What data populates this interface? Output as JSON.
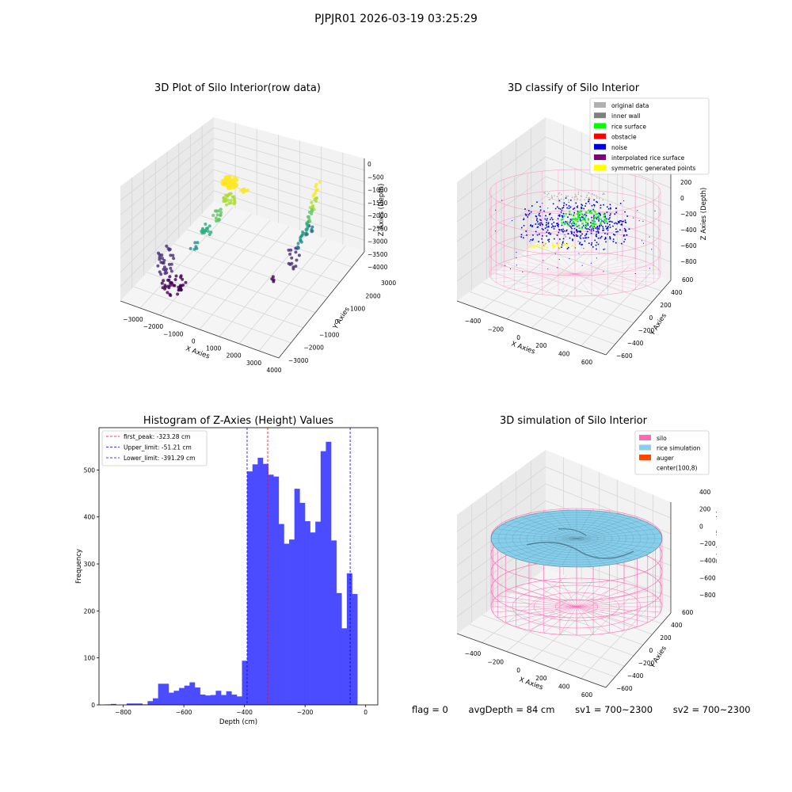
{
  "page_title": "PJPJR01 2026-03-19 03:25:29",
  "status": {
    "flag": "flag = 0",
    "avg_depth": "avgDepth = 84 cm",
    "sv1": "sv1 = 700~2300",
    "sv2": "sv2 = 700~2300"
  },
  "colors": {
    "histogram_bar": "#4b4bff",
    "first_peak_line": "#ff0000",
    "limit_line": "#0000ff",
    "silo": "#ff69b4",
    "rice_simulation": "#87ceeb",
    "auger": "#ff4500",
    "original_data": "#b0b0b0",
    "inner_wall": "#808080",
    "rice_surface": "#00ff00",
    "obstacle": "#ff0000",
    "noise": "#0000dd",
    "interpolated_rice_surface": "#800080",
    "symmetric_generated_points": "#ffff00"
  },
  "chart_data": [
    {
      "type": "scatter",
      "title": "3D Plot of Silo Interior(row data)",
      "xlabel": "X Axies",
      "ylabel": "Y Axies",
      "zlabel": "Z Axies (Depth)",
      "x_ticks": [
        "−3000",
        "−2000",
        "−1000",
        "0",
        "1000",
        "2000",
        "3000",
        "4000"
      ],
      "y_ticks": [
        "−3000",
        "−2000",
        "−1000",
        "0",
        "1000",
        "2000",
        "3000"
      ],
      "z_ticks": [
        "0",
        "−500",
        "−1000",
        "−1500",
        "−2000",
        "−2500",
        "−3000",
        "−3500",
        "−4000"
      ]
    },
    {
      "type": "scatter",
      "title": "3D classify of Silo Interior",
      "xlabel": "X Axies",
      "ylabel": "Y Axies",
      "zlabel": "Z Axies (Depth)",
      "x_ticks": [
        "−400",
        "−200",
        "0",
        "200",
        "400",
        "600"
      ],
      "y_ticks": [
        "−600",
        "−400",
        "−200",
        "0",
        "200",
        "400",
        "600"
      ],
      "z_ticks": [
        "200",
        "0",
        "−200",
        "−400",
        "−600",
        "−800"
      ],
      "z_top_label": "00",
      "legend": [
        "original data",
        "inner wall",
        "rice surface",
        "obstacle",
        "noise",
        "interpolated rice surface",
        "symmetric generated points"
      ],
      "legend_placement": "top-right"
    },
    {
      "type": "bar",
      "title": "Histogram of Z-Axies (Height) Values",
      "xlabel": "Depth (cm)",
      "ylabel": "Frequency",
      "xlim": [
        -880,
        40
      ],
      "ylim": [
        0,
        590
      ],
      "x_ticks": [
        -800,
        -600,
        -400,
        -200,
        0
      ],
      "x_tick_labels": [
        "−800",
        "−600",
        "−400",
        "−200",
        "0"
      ],
      "y_ticks": [
        0,
        100,
        200,
        300,
        400,
        500
      ],
      "y_tick_labels": [
        "0",
        "100",
        "200",
        "300",
        "400",
        "500"
      ],
      "bin_start": -858,
      "bin_width": 17.3,
      "values": [
        1,
        2,
        0,
        0,
        3,
        3,
        3,
        1,
        8,
        14,
        45,
        45,
        26,
        30,
        36,
        41,
        48,
        37,
        22,
        20,
        21,
        30,
        21,
        29,
        22,
        18,
        94,
        497,
        512,
        526,
        513,
        490,
        486,
        385,
        343,
        352,
        460,
        430,
        391,
        367,
        390,
        540,
        560,
        350,
        238,
        163,
        280,
        236
      ],
      "vlines": [
        {
          "label": "first_peak: -323.28 cm",
          "value": -323.28,
          "color": "#ff0000"
        },
        {
          "label": "Upper_limit: -51.21 cm",
          "value": -51.21,
          "color": "#0000ff"
        },
        {
          "label": "Lower_limit: -391.29 cm",
          "value": -391.29,
          "color": "#0000ff"
        }
      ],
      "legend_placement": "top-left"
    },
    {
      "type": "surface",
      "title": "3D simulation of Silo Interior",
      "xlabel": "X Axies",
      "ylabel": "Y Axies",
      "zlabel": "Z Axies (Depth)",
      "x_ticks": [
        "−400",
        "−200",
        "0",
        "200",
        "400",
        "600"
      ],
      "y_ticks": [
        "−600",
        "−400",
        "−200",
        "0",
        "200",
        "400",
        "600"
      ],
      "z_ticks": [
        "400",
        "200",
        "0",
        "−200",
        "−400",
        "−600",
        "−800"
      ],
      "legend": [
        "silo",
        "rice simulation",
        "auger",
        "center(100,8)"
      ],
      "legend_placement": "top-right"
    }
  ]
}
